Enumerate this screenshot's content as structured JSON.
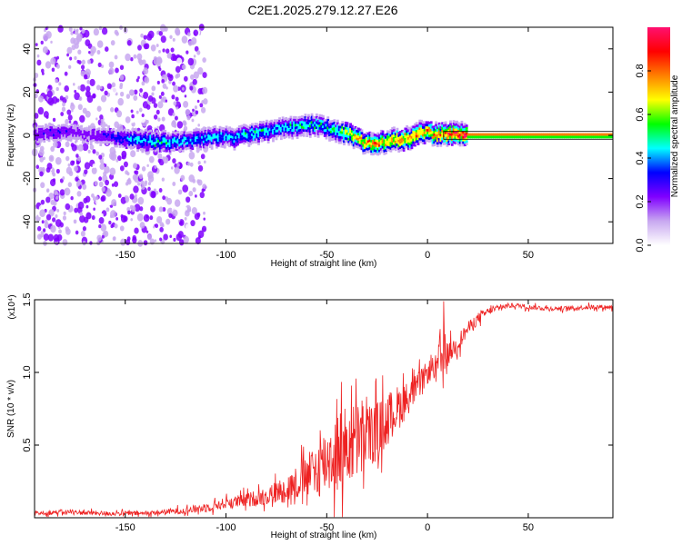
{
  "page": {
    "title": "C2E1.2025.279.12.27.E26"
  },
  "chart_data": [
    {
      "type": "heatmap",
      "title": "C2E1.2025.279.12.27.E26",
      "xlabel": "Height of straight line (km)",
      "ylabel": "Frequency (Hz)",
      "xlim": [
        -195,
        92
      ],
      "ylim": [
        -50,
        50
      ],
      "xticks": [
        -150,
        -100,
        -50,
        0,
        50
      ],
      "yticks": [
        -40,
        -20,
        0,
        20,
        40
      ],
      "xtick_labels": [
        "-150",
        "-100",
        "-50",
        "0",
        "50"
      ],
      "ytick_labels": [
        "-40",
        "-20",
        "0",
        "20",
        "40"
      ],
      "colorbar": {
        "label": "Normalized spectral amplitude",
        "range": [
          0,
          1
        ],
        "ticks": [
          0.0,
          0.2,
          0.4,
          0.6,
          0.8
        ],
        "tick_labels": [
          "0.0",
          "0.2",
          "0.4",
          "0.6",
          "0.8"
        ],
        "colors": [
          "#ffffff",
          "#c8a8f0",
          "#8000ff",
          "#0000ff",
          "#00ffff",
          "#00ff00",
          "#ffff00",
          "#ff8000",
          "#ff0000",
          "#ff1070"
        ]
      },
      "ridge": {
        "name": "dominant frequency track",
        "x": [
          -195,
          -185,
          -175,
          -165,
          -155,
          -145,
          -135,
          -125,
          -115,
          -105,
          -95,
          -85,
          -75,
          -65,
          -55,
          -45,
          -38,
          -32,
          -26,
          -20,
          -14,
          -8,
          -4,
          0,
          4,
          8,
          14,
          20,
          40,
          60,
          80,
          90
        ],
        "freq": [
          1,
          2,
          1,
          0,
          -1,
          -2,
          -3,
          -3,
          -2,
          -1,
          -1,
          1,
          3,
          4,
          5,
          2,
          0,
          -3,
          -4,
          -3,
          -2,
          -1,
          1,
          2,
          0,
          1,
          0,
          0,
          0,
          0,
          0,
          0
        ],
        "amplitude": [
          0.3,
          0.35,
          0.3,
          0.3,
          0.4,
          0.5,
          0.55,
          0.5,
          0.5,
          0.5,
          0.5,
          0.55,
          0.5,
          0.55,
          0.55,
          0.6,
          0.75,
          0.85,
          0.9,
          0.85,
          0.85,
          0.9,
          0.9,
          0.85,
          0.9,
          0.95,
          1.0,
          1.0,
          1.0,
          1.0,
          1.0,
          1.0
        ]
      },
      "scatter_region": {
        "x_range": [
          -195,
          -120
        ],
        "note": "broadband weak energy spread across all frequencies"
      }
    },
    {
      "type": "line",
      "xlabel": "Height of straight line (km)",
      "ylabel": "SNR (10 * v/v)",
      "y_multiplier_label": "(x10⁴)",
      "xlim": [
        -195,
        92
      ],
      "ylim": [
        0,
        1.5
      ],
      "xticks": [
        -150,
        -100,
        -50,
        0,
        50
      ],
      "yticks": [
        0.5,
        1.0,
        1.5
      ],
      "xtick_labels": [
        "-150",
        "-100",
        "-50",
        "0",
        "50"
      ],
      "ytick_labels": [
        "0.5",
        "1.0",
        "1.5"
      ],
      "series": [
        {
          "name": "SNR",
          "color": "#ee2222",
          "x": [
            -195,
            -180,
            -160,
            -140,
            -120,
            -110,
            -100,
            -90,
            -80,
            -70,
            -60,
            -55,
            -50,
            -45,
            -40,
            -35,
            -30,
            -25,
            -20,
            -15,
            -10,
            -5,
            0,
            5,
            7,
            10,
            15,
            20,
            25,
            30,
            35,
            40,
            45,
            50,
            60,
            70,
            80,
            92
          ],
          "values": [
            0.03,
            0.04,
            0.03,
            0.03,
            0.05,
            0.07,
            0.1,
            0.12,
            0.15,
            0.2,
            0.28,
            0.33,
            0.4,
            0.45,
            0.5,
            0.52,
            0.55,
            0.6,
            0.68,
            0.75,
            0.82,
            0.9,
            1.0,
            1.05,
            1.1,
            1.12,
            1.2,
            1.3,
            1.37,
            1.42,
            1.44,
            1.46,
            1.46,
            1.45,
            1.44,
            1.44,
            1.45,
            1.45
          ],
          "spread": [
            0.02,
            0.02,
            0.02,
            0.02,
            0.03,
            0.04,
            0.05,
            0.06,
            0.08,
            0.12,
            0.18,
            0.25,
            0.3,
            0.35,
            0.35,
            0.35,
            0.3,
            0.25,
            0.22,
            0.2,
            0.15,
            0.12,
            0.1,
            0.1,
            0.4,
            0.1,
            0.08,
            0.06,
            0.05,
            0.03,
            0.03,
            0.02,
            0.02,
            0.02,
            0.02,
            0.02,
            0.02,
            0.02
          ]
        }
      ]
    }
  ]
}
